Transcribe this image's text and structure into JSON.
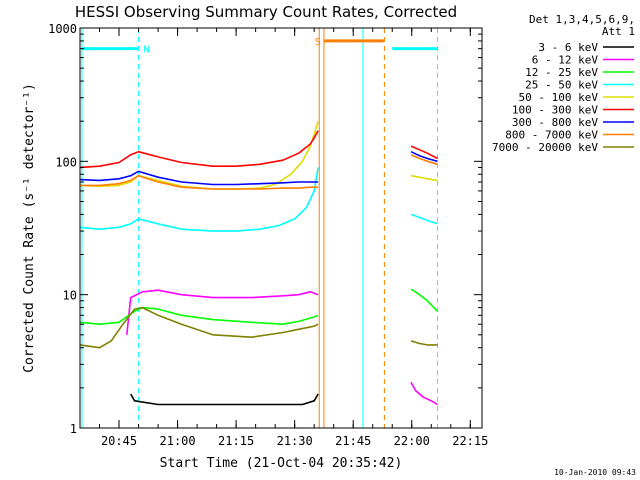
{
  "chart_data": {
    "type": "line",
    "title": "HESSI Observing Summary Count Rates, Corrected",
    "xlabel": "Start Time (21-Oct-04 20:35:42)",
    "ylabel": "Corrected Count Rate (s⁻¹ detector⁻¹)",
    "y_scale": "log",
    "ylim": [
      1,
      1000
    ],
    "xlim_minutes_after_2035": [
      0,
      103
    ],
    "x_ticks": [
      {
        "label": "20:45",
        "min": 10
      },
      {
        "label": "21:00",
        "min": 25
      },
      {
        "label": "21:15",
        "min": 40
      },
      {
        "label": "21:30",
        "min": 55
      },
      {
        "label": "21:45",
        "min": 70
      },
      {
        "label": "22:00",
        "min": 85
      },
      {
        "label": "22:15",
        "min": 100
      }
    ],
    "y_ticks": [
      {
        "label": "1",
        "value": 1
      },
      {
        "label": "10",
        "value": 10
      },
      {
        "label": "100",
        "value": 100
      },
      {
        "label": "1000",
        "value": 1000
      }
    ],
    "legend": {
      "placement": "right",
      "header_line1": "Det 1,3,4,5,6,9,",
      "header_line2": "Att 1"
    },
    "series": [
      {
        "name": "3 - 6 keV",
        "color": "#000000",
        "segments": [
          {
            "x": [
              13,
              14,
              20,
              26,
              34,
              44,
              52,
              57,
              60,
              61
            ],
            "y": [
              1.8,
              1.6,
              1.5,
              1.5,
              1.5,
              1.5,
              1.5,
              1.5,
              1.6,
              1.8
            ]
          }
        ]
      },
      {
        "name": "6 - 12 keV",
        "color": "#ff00ff",
        "segments": [
          {
            "x": [
              12,
              13,
              16,
              20,
              26,
              34,
              44,
              52,
              56,
              59,
              61
            ],
            "y": [
              5.0,
              9.5,
              10.5,
              10.8,
              10.0,
              9.5,
              9.5,
              9.8,
              10.0,
              10.5,
              10.0
            ]
          },
          {
            "x": [
              84.8,
              86,
              88,
              90,
              91.6
            ],
            "y": [
              2.2,
              1.9,
              1.7,
              1.6,
              1.5
            ]
          }
        ]
      },
      {
        "name": "12 - 25 keV",
        "color": "#00ff00",
        "segments": [
          {
            "x": [
              0,
              5,
              10,
              14,
              16,
              20,
              26,
              34,
              44,
              52,
              56,
              60,
              61
            ],
            "y": [
              6.2,
              6.0,
              6.2,
              7.5,
              8.0,
              7.8,
              7.0,
              6.5,
              6.2,
              6.0,
              6.3,
              6.8,
              7.0
            ]
          },
          {
            "x": [
              84.8,
              87,
              89,
              91.6
            ],
            "y": [
              11.0,
              10.0,
              9.0,
              7.5
            ]
          }
        ]
      },
      {
        "name": "25 - 50 keV",
        "color": "#00ffff",
        "segments": [
          {
            "x": [
              0,
              5,
              10,
              13,
              15,
              20,
              26,
              34,
              40,
              46,
              51,
              55,
              58,
              60,
              61
            ],
            "y": [
              32,
              31,
              32,
              34,
              37,
              34,
              31,
              30,
              30,
              31,
              33,
              37,
              45,
              60,
              90
            ]
          },
          {
            "x": [
              84.8,
              87,
              89,
              91.6
            ],
            "y": [
              40,
              38,
              36,
              34
            ]
          }
        ]
      },
      {
        "name": "50 - 100 keV",
        "color": "#dddd00",
        "segments": [
          {
            "x": [
              0,
              5,
              10,
              13,
              15,
              20,
              26,
              34,
              40,
              46,
              50,
              54,
              57,
              59,
              60,
              61
            ],
            "y": [
              66,
              65,
              66,
              70,
              78,
              72,
              65,
              62,
              62,
              63,
              67,
              80,
              100,
              130,
              160,
              200
            ]
          },
          {
            "x": [
              84.8,
              87,
              89,
              91.6
            ],
            "y": [
              78,
              76,
              74,
              72
            ]
          }
        ]
      },
      {
        "name": "100 - 300 keV",
        "color": "#ff0000",
        "segments": [
          {
            "x": [
              0,
              5,
              10,
              13,
              15,
              20,
              26,
              34,
              40,
              46,
              52,
              56,
              59,
              60,
              61
            ],
            "y": [
              90,
              92,
              98,
              112,
              118,
              108,
              98,
              92,
              92,
              95,
              102,
              115,
              135,
              150,
              170
            ]
          },
          {
            "x": [
              84.8,
              87,
              89,
              91.6
            ],
            "y": [
              130,
              122,
              115,
              105
            ]
          }
        ]
      },
      {
        "name": "300 - 800 keV",
        "color": "#0000ff",
        "segments": [
          {
            "x": [
              0,
              5,
              10,
              13,
              15,
              20,
              26,
              34,
              40,
              46,
              52,
              56,
              59,
              61
            ],
            "y": [
              73,
              72,
              74,
              78,
              84,
              76,
              70,
              67,
              67,
              68,
              69,
              70,
              70,
              70
            ]
          },
          {
            "x": [
              84.8,
              87,
              89,
              91.6
            ],
            "y": [
              118,
              110,
              105,
              100
            ]
          }
        ]
      },
      {
        "name": "800 - 7000 keV",
        "color": "#ff8000",
        "segments": [
          {
            "x": [
              0,
              5,
              10,
              13,
              15,
              20,
              26,
              34,
              40,
              46,
              52,
              56,
              59,
              61
            ],
            "y": [
              66,
              66,
              68,
              72,
              78,
              70,
              64,
              62,
              62,
              62,
              63,
              63,
              64,
              64
            ]
          },
          {
            "x": [
              84.8,
              87,
              89,
              91.6
            ],
            "y": [
              112,
              105,
              100,
              95
            ]
          }
        ]
      },
      {
        "name": "7000 - 20000 keV",
        "color": "#808000",
        "segments": [
          {
            "x": [
              0,
              5,
              8,
              11,
              14,
              16,
              20,
              26,
              34,
              44,
              52,
              56,
              60,
              61
            ],
            "y": [
              4.2,
              4.0,
              4.5,
              6.0,
              7.8,
              8.0,
              7.0,
              6.0,
              5.0,
              4.8,
              5.2,
              5.5,
              5.8,
              6.0
            ]
          },
          {
            "x": [
              84.8,
              87,
              89,
              91.6
            ],
            "y": [
              4.5,
              4.3,
              4.2,
              4.2
            ]
          }
        ]
      }
    ],
    "flag_bars": [
      {
        "label": "N",
        "color": "#00ffff",
        "x_start": 0.5,
        "x_end": 15,
        "y": 700
      },
      {
        "label": "S",
        "color": "#ff8000",
        "x_start": 62.5,
        "x_end": 78,
        "y": 800
      },
      {
        "label": "",
        "color": "#00ffff",
        "x_start": 80,
        "x_end": 91.6,
        "y": 700
      }
    ],
    "vertical_markers": [
      {
        "x": 0.5,
        "color": "#00ffff",
        "style": "solid"
      },
      {
        "x": 15,
        "color": "#00ffff",
        "style": "dashed"
      },
      {
        "x": 61.3,
        "color": "#ff8000",
        "style": "solid"
      },
      {
        "x": 62.5,
        "color": "#ff8000",
        "style": "solid"
      },
      {
        "x": 72.5,
        "color": "#00ffff",
        "style": "solid"
      },
      {
        "x": 78,
        "color": "#ff8000",
        "style": "dashed"
      },
      {
        "x": 91.6,
        "color": "#00ffff",
        "style": "dashed"
      }
    ],
    "timestamp": "10-Jan-2010 09:43"
  }
}
